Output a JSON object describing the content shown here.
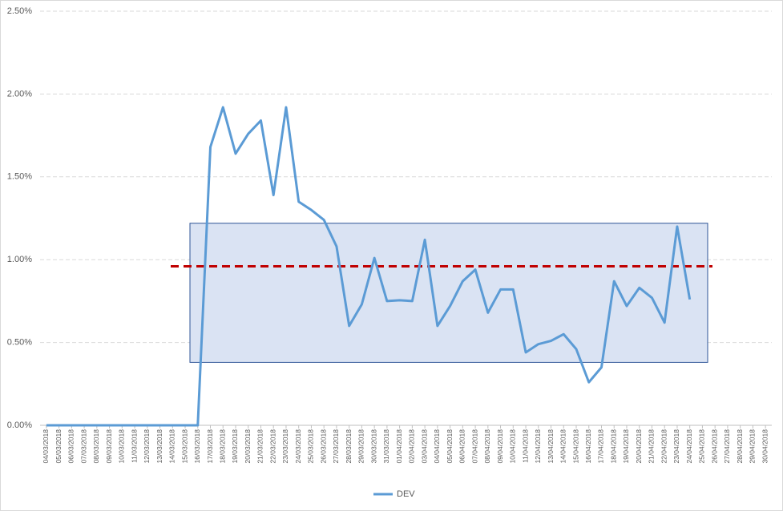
{
  "chart_data": {
    "type": "line",
    "categories": [
      "04/03/2018",
      "05/03/2018",
      "06/03/2018",
      "07/03/2018",
      "08/03/2018",
      "09/03/2018",
      "10/03/2018",
      "11/03/2018",
      "12/03/2018",
      "13/03/2018",
      "14/03/2018",
      "15/03/2018",
      "16/03/2018",
      "17/03/2018",
      "18/03/2018",
      "19/03/2018",
      "20/03/2018",
      "21/03/2018",
      "22/03/2018",
      "23/03/2018",
      "24/03/2018",
      "25/03/2018",
      "26/03/2018",
      "27/03/2018",
      "28/03/2018",
      "29/03/2018",
      "30/03/2018",
      "31/03/2018",
      "01/04/2018",
      "02/04/2018",
      "03/04/2018",
      "04/04/2018",
      "05/04/2018",
      "06/04/2018",
      "07/04/2018",
      "08/04/2018",
      "09/04/2018",
      "10/04/2018",
      "11/04/2018",
      "12/04/2018",
      "13/04/2018",
      "14/04/2018",
      "15/04/2018",
      "16/04/2018",
      "17/04/2018",
      "18/04/2018",
      "19/04/2018",
      "20/04/2018",
      "21/04/2018",
      "22/04/2018",
      "23/04/2018",
      "24/04/2018",
      "25/04/2018",
      "26/04/2018",
      "27/04/2018",
      "28/04/2018",
      "29/04/2018",
      "30/04/2018"
    ],
    "series": [
      {
        "name": "DEV",
        "color": "#5b9bd5",
        "values": [
          0,
          0,
          0,
          0,
          0,
          0,
          0,
          0,
          0,
          0,
          0,
          0,
          0,
          1.68,
          1.92,
          1.64,
          1.76,
          1.84,
          1.39,
          1.92,
          1.35,
          1.3,
          1.24,
          1.08,
          0.6,
          0.73,
          1.01,
          0.75,
          0.755,
          0.75,
          1.12,
          0.6,
          0.72,
          0.87,
          0.94,
          0.68,
          0.82,
          0.82,
          0.44,
          0.49,
          0.51,
          0.55,
          0.46,
          0.26,
          0.35,
          0.87,
          0.72,
          0.83,
          0.77,
          0.62,
          1.2,
          0.76,
          null,
          null,
          null,
          null,
          null,
          null
        ]
      }
    ],
    "reference_line": {
      "value": 0.96,
      "color": "#c00000"
    },
    "band": {
      "low": 0.38,
      "high": 1.22,
      "color": "#dae3f3"
    },
    "ylim": [
      0,
      2.5
    ],
    "yticks": [
      {
        "value": 0,
        "label": "0.00%"
      },
      {
        "value": 0.5,
        "label": "0.50%"
      },
      {
        "value": 1,
        "label": "1.00%"
      },
      {
        "value": 1.5,
        "label": "1.50%"
      },
      {
        "value": 2,
        "label": "2.00%"
      },
      {
        "value": 2.5,
        "label": "2.50%"
      }
    ],
    "grid": true
  }
}
